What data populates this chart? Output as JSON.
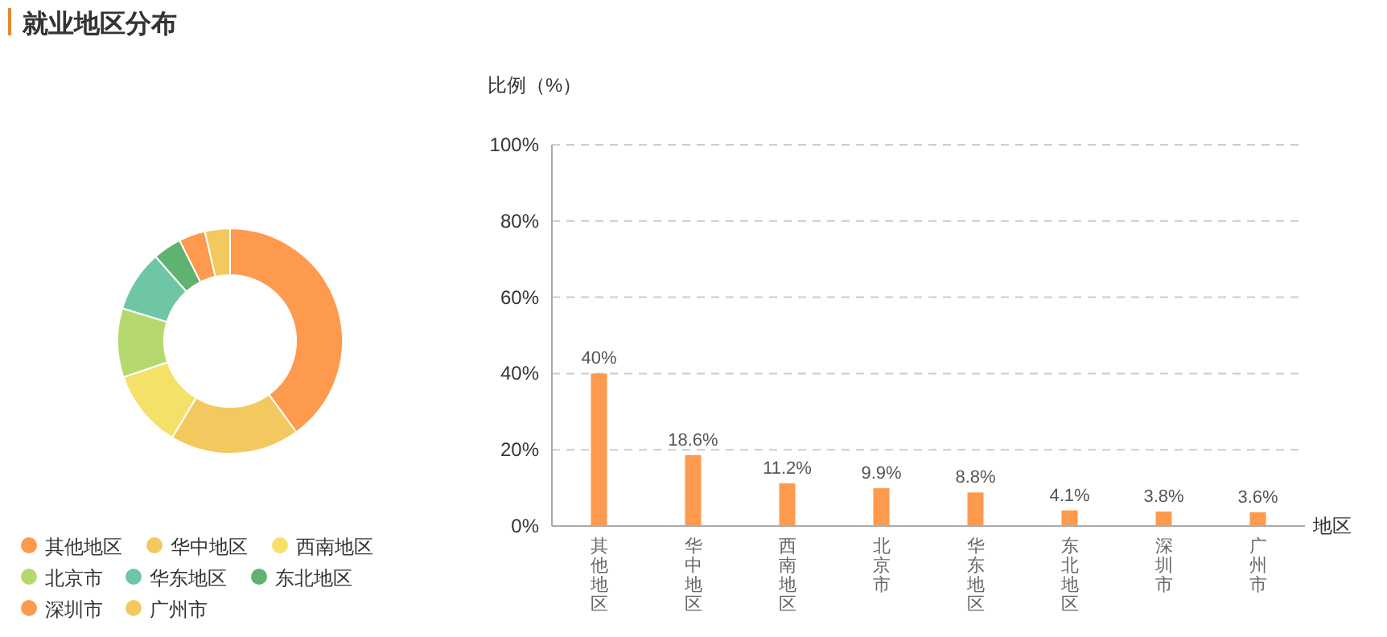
{
  "chart_data": [
    {
      "type": "donut",
      "title": "就业地区分布",
      "categories": [
        "其他地区",
        "华中地区",
        "西南地区",
        "北京市",
        "华东地区",
        "东北地区",
        "深圳市",
        "广州市"
      ],
      "values": [
        40,
        18.6,
        11.2,
        9.9,
        8.8,
        4.1,
        3.8,
        3.6
      ],
      "colors": [
        "#fd9a4d",
        "#f3c95f",
        "#f5e06a",
        "#b5d96e",
        "#6ec6a4",
        "#5fb26f",
        "#fd9a4d",
        "#f3c95f"
      ],
      "legend": "bottom left"
    },
    {
      "type": "bar",
      "ylabel": "比例（%）",
      "xlabel": "地区",
      "categories": [
        "其他地区",
        "华中地区",
        "西南地区",
        "北京市",
        "华东地区",
        "东北地区",
        "深圳市",
        "广州市"
      ],
      "series": [
        {
          "color": "#fd9a4d",
          "values": [
            40,
            18.6,
            11.2,
            9.9,
            8.8,
            4.1,
            3.8,
            3.6
          ],
          "value_labels": [
            "40%",
            "18.6%",
            "11.2%",
            "9.9%",
            "8.8%",
            "4.1%",
            "3.8%",
            "3.6%"
          ]
        }
      ],
      "ylim": [
        0,
        100
      ],
      "yticks": [
        {
          "value": 0,
          "label": "0%"
        },
        {
          "value": 20,
          "label": "20%"
        },
        {
          "value": 40,
          "label": "40%"
        },
        {
          "value": 60,
          "label": "60%"
        },
        {
          "value": 80,
          "label": "80%"
        },
        {
          "value": 100,
          "label": "100%"
        }
      ],
      "grid": "y"
    }
  ]
}
